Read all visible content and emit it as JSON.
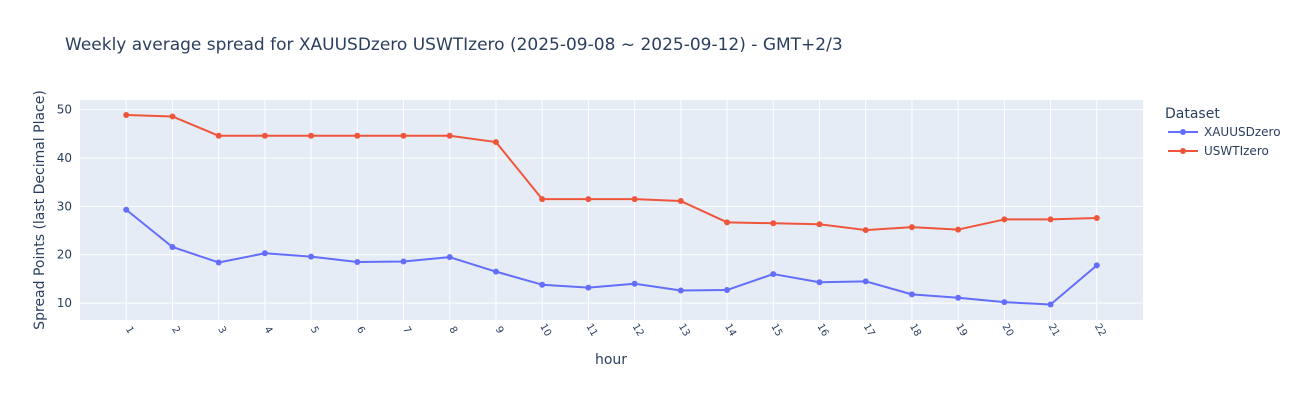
{
  "chart_data": {
    "type": "line",
    "title": "Weekly average spread for  XAUUSDzero USWTIzero (2025-09-08 ~ 2025-09-12) - GMT+2/3",
    "xlabel": "hour",
    "ylabel": "Spread Points (last Decimal Place)",
    "x": [
      1,
      2,
      3,
      4,
      5,
      6,
      7,
      8,
      9,
      10,
      11,
      12,
      13,
      14,
      15,
      16,
      17,
      18,
      19,
      20,
      21,
      22
    ],
    "xticks": [
      "1",
      "2",
      "3",
      "4",
      "5",
      "6",
      "7",
      "8",
      "9",
      "10",
      "11",
      "12",
      "13",
      "14",
      "15",
      "16",
      "17",
      "18",
      "19",
      "20",
      "21",
      "22"
    ],
    "xlim": [
      0,
      23
    ],
    "ylim": [
      6.5,
      52
    ],
    "yticks": [
      10,
      20,
      30,
      40,
      50
    ],
    "grid": true,
    "legend": {
      "title": "Dataset",
      "placement": "top-right"
    },
    "plot_bgcolor": "#e5ecf6",
    "series": [
      {
        "name": "XAUUSDzero",
        "color": "#636efa",
        "values": [
          29.3,
          21.6,
          18.4,
          20.3,
          19.6,
          18.5,
          18.6,
          19.5,
          16.5,
          13.8,
          13.2,
          14.0,
          12.6,
          12.7,
          16.0,
          14.3,
          14.5,
          11.8,
          11.1,
          10.2,
          9.7,
          17.8
        ]
      },
      {
        "name": "USWTIzero",
        "color": "#ef553b",
        "values": [
          48.9,
          48.6,
          44.6,
          44.6,
          44.6,
          44.6,
          44.6,
          44.6,
          43.3,
          31.5,
          31.5,
          31.5,
          31.1,
          26.7,
          26.5,
          26.3,
          25.1,
          25.7,
          25.2,
          27.3,
          27.3,
          27.6
        ]
      }
    ]
  }
}
